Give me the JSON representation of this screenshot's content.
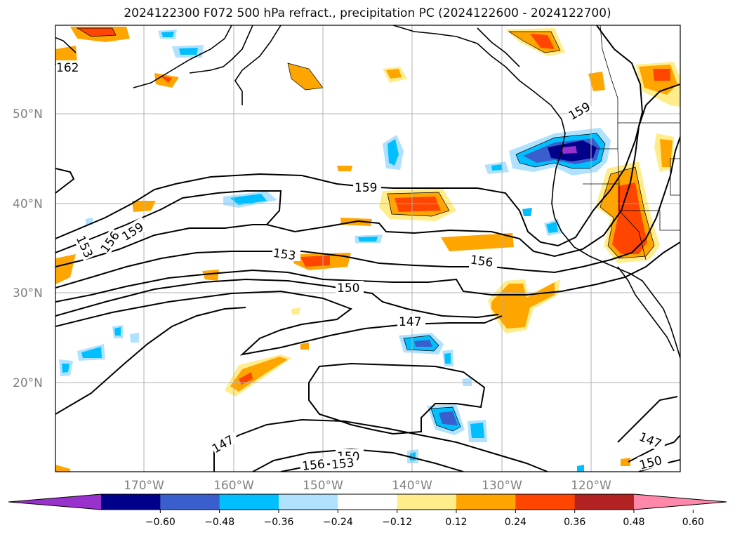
{
  "title": "2024122300 F072 500 hPa refract., precipitation PC (2024122600 - 2024122700)",
  "latitude_labels": [
    "50°N",
    "40°N",
    "30°N",
    "20°N"
  ],
  "longitude_labels": [
    "170°W",
    "160°W",
    "150°W",
    "140°W",
    "130°W",
    "120°W"
  ],
  "contour_labels": [
    "162",
    "159",
    "159",
    "159",
    "156",
    "153",
    "153",
    "150",
    "147",
    "147",
    "150",
    "153",
    "156",
    "147",
    "150",
    "156"
  ],
  "colorbar": {
    "ticks": [
      "−0.60",
      "−0.48",
      "−0.36",
      "−0.24",
      "−0.12",
      "0.12",
      "0.24",
      "0.36",
      "0.48",
      "0.60"
    ],
    "colors": [
      "#9932cc",
      "#00008b",
      "#3a5fcd",
      "#00bfff",
      "#b0e2ff",
      "#ffffff",
      "#ffec8b",
      "#ffa500",
      "#ff4500",
      "#b22222",
      "#ff88aa"
    ]
  },
  "colors": {
    "contour": "#000000",
    "grid": "#b0b0b0",
    "coast": "#000000"
  }
}
